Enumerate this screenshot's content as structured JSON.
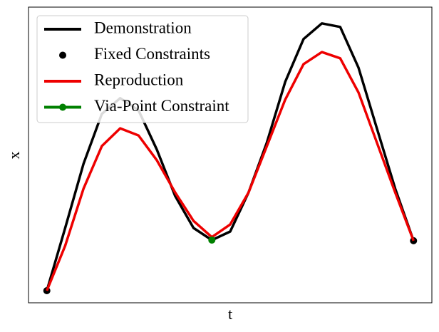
{
  "chart_data": {
    "type": "line",
    "xlabel": "t",
    "ylabel": "x",
    "xlim": [
      -0.05,
      1.05
    ],
    "ylim": [
      0,
      1
    ],
    "legend": "upper left",
    "series": [
      {
        "name": "Demonstration",
        "color": "#000000",
        "line": true,
        "marker": false,
        "x": [
          0,
          0.05,
          0.1,
          0.15,
          0.2,
          0.25,
          0.3,
          0.35,
          0.4,
          0.45,
          0.5,
          0.55,
          0.6,
          0.65,
          0.7,
          0.75,
          0.8,
          0.85,
          0.9,
          0.95,
          1
        ],
        "values": [
          0.041,
          0.253,
          0.47,
          0.639,
          0.692,
          0.651,
          0.518,
          0.361,
          0.253,
          0.212,
          0.241,
          0.373,
          0.542,
          0.747,
          0.892,
          0.945,
          0.933,
          0.795,
          0.59,
          0.386,
          0.21
        ]
      },
      {
        "name": "Fixed Constraints",
        "color": "#000000",
        "line": false,
        "marker": true,
        "x": [
          0,
          1
        ],
        "values": [
          0.041,
          0.21
        ]
      },
      {
        "name": "Reproduction",
        "color": "#ee0000",
        "line": true,
        "marker": false,
        "x": [
          0,
          0.05,
          0.1,
          0.15,
          0.2,
          0.25,
          0.3,
          0.35,
          0.4,
          0.45,
          0.5,
          0.55,
          0.6,
          0.65,
          0.7,
          0.75,
          0.8,
          0.85,
          0.9,
          0.95,
          1
        ],
        "values": [
          0.041,
          0.193,
          0.386,
          0.53,
          0.59,
          0.566,
          0.482,
          0.373,
          0.277,
          0.222,
          0.265,
          0.373,
          0.53,
          0.687,
          0.807,
          0.848,
          0.827,
          0.711,
          0.542,
          0.373,
          0.21
        ]
      },
      {
        "name": "Via-Point Constraint",
        "color": "#008000",
        "line": true,
        "marker": true,
        "x": [
          0.45
        ],
        "values": [
          0.212
        ]
      }
    ]
  }
}
